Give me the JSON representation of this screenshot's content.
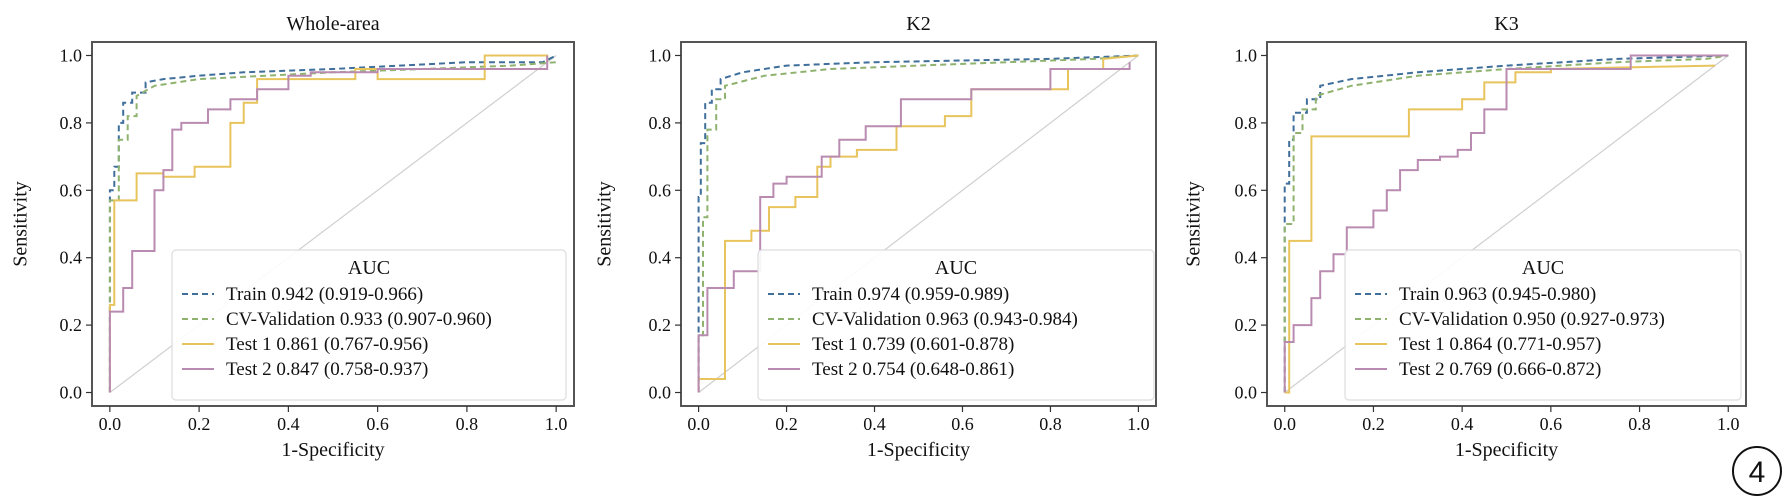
{
  "badge": "4",
  "chart_data": [
    {
      "type": "line",
      "title": "Whole-area",
      "xlabel": "1-Specificity",
      "ylabel": "Sensitivity",
      "xlim": [
        0,
        1
      ],
      "ylim": [
        0,
        1
      ],
      "xticks": [
        "0.0",
        "0.2",
        "0.4",
        "0.6",
        "0.8",
        "1.0"
      ],
      "yticks": [
        "0.0",
        "0.2",
        "0.4",
        "0.6",
        "0.8",
        "1.0"
      ],
      "legend_title": "AUC",
      "legend_position": "lower-right",
      "grid": false,
      "series": [
        {
          "name": "Train 0.942 (0.919-0.966)",
          "color": "#3f6f9a",
          "dash": "dashed",
          "x": [
            0,
            0,
            0.01,
            0.01,
            0.02,
            0.02,
            0.03,
            0.03,
            0.05,
            0.05,
            0.08,
            0.08,
            0.12,
            0.2,
            0.3,
            0.5,
            0.8,
            0.97,
            1.0
          ],
          "y": [
            0,
            0.6,
            0.6,
            0.67,
            0.67,
            0.8,
            0.8,
            0.86,
            0.86,
            0.89,
            0.89,
            0.92,
            0.93,
            0.94,
            0.95,
            0.96,
            0.98,
            0.98,
            1.0
          ]
        },
        {
          "name": "CV-Validation 0.933 (0.907-0.960)",
          "color": "#8fb26e",
          "dash": "dashed",
          "x": [
            0,
            0,
            0.02,
            0.02,
            0.04,
            0.04,
            0.06,
            0.06,
            0.1,
            0.2,
            0.35,
            0.5,
            0.7,
            0.9,
            1.0
          ],
          "y": [
            0,
            0.57,
            0.57,
            0.75,
            0.75,
            0.82,
            0.82,
            0.88,
            0.91,
            0.93,
            0.94,
            0.95,
            0.96,
            0.97,
            0.98
          ]
        },
        {
          "name": "Test 1 0.861 (0.767-0.956)",
          "color": "#e8c45c",
          "dash": "solid",
          "x": [
            0,
            0,
            0.01,
            0.01,
            0.06,
            0.06,
            0.12,
            0.12,
            0.19,
            0.19,
            0.27,
            0.27,
            0.3,
            0.3,
            0.33,
            0.33,
            0.55,
            0.55,
            0.6,
            0.6,
            0.84,
            0.84,
            0.98,
            0.98
          ],
          "y": [
            0,
            0.26,
            0.26,
            0.57,
            0.57,
            0.65,
            0.65,
            0.64,
            0.64,
            0.67,
            0.67,
            0.8,
            0.8,
            0.86,
            0.86,
            0.93,
            0.93,
            0.96,
            0.96,
            0.93,
            0.93,
            1.0,
            1.0,
            0.98
          ]
        },
        {
          "name": "Test 2 0.847 (0.758-0.937)",
          "color": "#b98bb0",
          "dash": "solid",
          "x": [
            0,
            0,
            0.01,
            0.01,
            0.03,
            0.03,
            0.05,
            0.05,
            0.1,
            0.1,
            0.12,
            0.12,
            0.14,
            0.14,
            0.16,
            0.16,
            0.22,
            0.22,
            0.27,
            0.27,
            0.33,
            0.33,
            0.4,
            0.4,
            0.45,
            0.45,
            0.6,
            0.6,
            0.75,
            0.75,
            0.98,
            0.98
          ],
          "y": [
            0,
            0.24,
            0.24,
            0.24,
            0.24,
            0.31,
            0.31,
            0.42,
            0.42,
            0.6,
            0.6,
            0.66,
            0.66,
            0.78,
            0.78,
            0.8,
            0.8,
            0.84,
            0.84,
            0.87,
            0.87,
            0.9,
            0.9,
            0.94,
            0.94,
            0.95,
            0.95,
            0.96,
            0.96,
            0.96,
            0.96,
            1.0
          ]
        }
      ]
    },
    {
      "type": "line",
      "title": "K2",
      "xlabel": "1-Specificity",
      "ylabel": "Sensitivity",
      "xlim": [
        0,
        1
      ],
      "ylim": [
        0,
        1
      ],
      "xticks": [
        "0.0",
        "0.2",
        "0.4",
        "0.6",
        "0.8",
        "1.0"
      ],
      "yticks": [
        "0.0",
        "0.2",
        "0.4",
        "0.6",
        "0.8",
        "1.0"
      ],
      "legend_title": "AUC",
      "legend_position": "lower-right",
      "grid": false,
      "series": [
        {
          "name": "Train 0.974 (0.959-0.989)",
          "color": "#3f6f9a",
          "dash": "dashed",
          "x": [
            0,
            0,
            0.005,
            0.005,
            0.015,
            0.015,
            0.03,
            0.03,
            0.05,
            0.05,
            0.1,
            0.2,
            0.4,
            0.6,
            0.8,
            1.0
          ],
          "y": [
            0,
            0.58,
            0.58,
            0.74,
            0.74,
            0.86,
            0.86,
            0.9,
            0.9,
            0.93,
            0.95,
            0.97,
            0.98,
            0.985,
            0.99,
            1.0
          ]
        },
        {
          "name": "CV-Validation 0.963 (0.943-0.984)",
          "color": "#8fb26e",
          "dash": "dashed",
          "x": [
            0,
            0,
            0.01,
            0.01,
            0.02,
            0.02,
            0.04,
            0.04,
            0.06,
            0.06,
            0.15,
            0.3,
            0.5,
            0.7,
            0.9,
            1.0
          ],
          "y": [
            0,
            0.17,
            0.17,
            0.52,
            0.52,
            0.78,
            0.78,
            0.87,
            0.87,
            0.91,
            0.94,
            0.96,
            0.97,
            0.98,
            0.99,
            1.0
          ]
        },
        {
          "name": "Test 1 0.739 (0.601-0.878)",
          "color": "#e8c45c",
          "dash": "solid",
          "x": [
            0,
            0,
            0.06,
            0.06,
            0.12,
            0.12,
            0.16,
            0.16,
            0.22,
            0.22,
            0.27,
            0.27,
            0.3,
            0.3,
            0.36,
            0.36,
            0.45,
            0.45,
            0.56,
            0.56,
            0.62,
            0.62,
            0.78,
            0.78,
            0.84,
            0.84,
            0.92,
            0.92,
            1.0
          ],
          "y": [
            0,
            0.04,
            0.04,
            0.45,
            0.45,
            0.48,
            0.48,
            0.55,
            0.55,
            0.58,
            0.58,
            0.67,
            0.67,
            0.7,
            0.7,
            0.72,
            0.72,
            0.79,
            0.79,
            0.82,
            0.82,
            0.9,
            0.9,
            0.9,
            0.9,
            0.96,
            0.96,
            0.99,
            1.0
          ]
        },
        {
          "name": "Test 2 0.754 (0.648-0.861)",
          "color": "#b98bb0",
          "dash": "solid",
          "x": [
            0,
            0,
            0.02,
            0.02,
            0.08,
            0.08,
            0.14,
            0.14,
            0.17,
            0.17,
            0.2,
            0.2,
            0.28,
            0.28,
            0.32,
            0.32,
            0.38,
            0.38,
            0.46,
            0.46,
            0.62,
            0.62,
            0.8,
            0.8,
            0.98,
            0.98
          ],
          "y": [
            0,
            0.17,
            0.17,
            0.31,
            0.31,
            0.36,
            0.36,
            0.58,
            0.58,
            0.62,
            0.62,
            0.64,
            0.64,
            0.7,
            0.7,
            0.75,
            0.75,
            0.79,
            0.79,
            0.87,
            0.87,
            0.9,
            0.9,
            0.96,
            0.96,
            0.98
          ]
        }
      ]
    },
    {
      "type": "line",
      "title": "K3",
      "xlabel": "1-Specificity",
      "ylabel": "Sensitivity",
      "xlim": [
        0,
        1
      ],
      "ylim": [
        0,
        1
      ],
      "xticks": [
        "0.0",
        "0.2",
        "0.4",
        "0.6",
        "0.8",
        "1.0"
      ],
      "yticks": [
        "0.0",
        "0.2",
        "0.4",
        "0.6",
        "0.8",
        "1.0"
      ],
      "legend_title": "AUC",
      "legend_position": "lower-right",
      "grid": false,
      "series": [
        {
          "name": "Train 0.963 (0.945-0.980)",
          "color": "#3f6f9a",
          "dash": "dashed",
          "x": [
            0,
            0,
            0.01,
            0.01,
            0.02,
            0.02,
            0.05,
            0.05,
            0.08,
            0.08,
            0.15,
            0.3,
            0.5,
            0.75,
            1.0
          ],
          "y": [
            0,
            0.62,
            0.62,
            0.75,
            0.75,
            0.83,
            0.83,
            0.87,
            0.87,
            0.91,
            0.93,
            0.95,
            0.97,
            0.99,
            1.0
          ]
        },
        {
          "name": "CV-Validation 0.950 (0.927-0.973)",
          "color": "#8fb26e",
          "dash": "dashed",
          "x": [
            0,
            0,
            0.02,
            0.02,
            0.04,
            0.04,
            0.07,
            0.07,
            0.15,
            0.3,
            0.5,
            0.75,
            0.95,
            1.0
          ],
          "y": [
            0,
            0.5,
            0.5,
            0.77,
            0.77,
            0.84,
            0.84,
            0.88,
            0.91,
            0.94,
            0.96,
            0.98,
            0.99,
            1.0
          ]
        },
        {
          "name": "Test 1 0.864 (0.771-0.957)",
          "color": "#e8c45c",
          "dash": "solid",
          "x": [
            0,
            0,
            0.01,
            0.01,
            0.06,
            0.06,
            0.28,
            0.28,
            0.4,
            0.4,
            0.45,
            0.45,
            0.52,
            0.52,
            0.6,
            0.6,
            0.97
          ],
          "y": [
            0,
            0.0,
            0.0,
            0.45,
            0.45,
            0.76,
            0.76,
            0.84,
            0.84,
            0.87,
            0.87,
            0.92,
            0.92,
            0.95,
            0.95,
            0.96,
            0.97
          ]
        },
        {
          "name": "Test 2 0.769 (0.666-0.872)",
          "color": "#b98bb0",
          "dash": "solid",
          "x": [
            0,
            0,
            0.02,
            0.02,
            0.06,
            0.06,
            0.08,
            0.08,
            0.11,
            0.11,
            0.14,
            0.14,
            0.2,
            0.2,
            0.23,
            0.23,
            0.26,
            0.26,
            0.3,
            0.3,
            0.35,
            0.35,
            0.39,
            0.39,
            0.42,
            0.42,
            0.45,
            0.45,
            0.5,
            0.5,
            0.78,
            0.78,
            1.0
          ],
          "y": [
            0,
            0.15,
            0.15,
            0.2,
            0.2,
            0.28,
            0.28,
            0.36,
            0.36,
            0.41,
            0.41,
            0.49,
            0.49,
            0.54,
            0.54,
            0.6,
            0.6,
            0.66,
            0.66,
            0.69,
            0.69,
            0.7,
            0.7,
            0.72,
            0.72,
            0.77,
            0.77,
            0.84,
            0.84,
            0.96,
            0.96,
            1.0,
            1.0
          ]
        }
      ]
    }
  ]
}
